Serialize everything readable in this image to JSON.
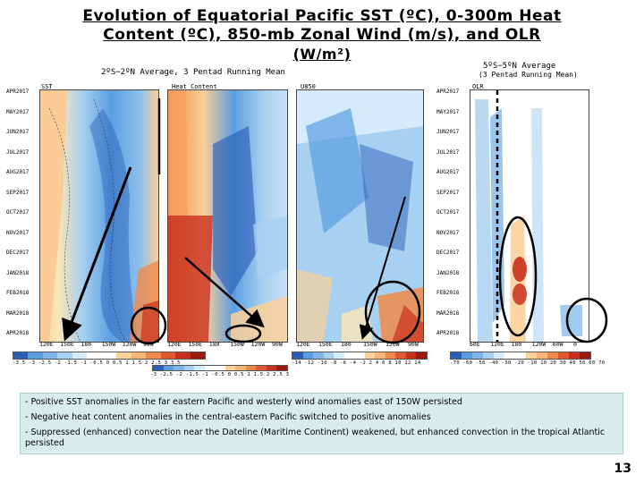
{
  "title": {
    "line1": "Evolution of Equatorial Pacific SST (ºC), 0-300m Heat",
    "line2": "Content (ºC), 850-mb Zonal Wind (m/s), and OLR",
    "line3": "(W/m²)"
  },
  "left_group": {
    "subtitle": "2ºS−2ºN Average, 3 Pentad Running Mean",
    "panels": [
      {
        "label": "SST"
      },
      {
        "label": "Heat Content"
      },
      {
        "label": "U850"
      }
    ]
  },
  "right_group": {
    "subtitle_line1": "5ºS−5ºN Average",
    "subtitle_line2": "(3 Pentad Running Mean)",
    "panel_label": "OLR"
  },
  "dates": [
    "APR2017",
    "MAY2017",
    "JUN2017",
    "JUL2017",
    "AUG2017",
    "SEP2017",
    "OCT2017",
    "NOV2017",
    "DEC2017",
    "JAN2018",
    "FEB2018",
    "MAR2018",
    "APR2018"
  ],
  "xticks_pacific": [
    "120E",
    "150E",
    "180",
    "150W",
    "120W",
    "90W"
  ],
  "xticks_olr": [
    "60E",
    "120E",
    "180",
    "120W",
    "60W",
    "0"
  ],
  "colorbars": {
    "sst": "-3.5 -3 -2.5 -2 -1.5 -1 -0.5 0 0.5 1 1.5 2 2.5 3 3.5",
    "heat": "-3 -2.5 -2 -1.5 -1 -0.5 0 0.5 1 1.5 2 2.5 3",
    "wind": "-14 -12 -10 -8 -6 -4 -2 2 4 6 8 10 12 14",
    "olr": "-70 -60 -50 -40 -30 -20 -10 10 20 30 40 50 60 70"
  },
  "notes": [
    "- Positive SST anomalies in the far eastern Pacific and westerly wind anomalies east of 150W persisted",
    "- Negative heat content anomalies in the central-eastern Pacific switched to positive anomalies",
    "- Suppressed (enhanced) convection near the Dateline (Maritime Continent) weakened, but enhanced convection in the tropical Atlantic persisted"
  ],
  "page_number": "13",
  "colors": {
    "warm_dark": "#c8301e",
    "warm": "#f08a4a",
    "warm_light": "#fbd09a",
    "cool_light": "#a8d0f0",
    "cool": "#5a9ee0",
    "cool_dark": "#2c5fb8",
    "notes_bg": "#d9ecec"
  }
}
